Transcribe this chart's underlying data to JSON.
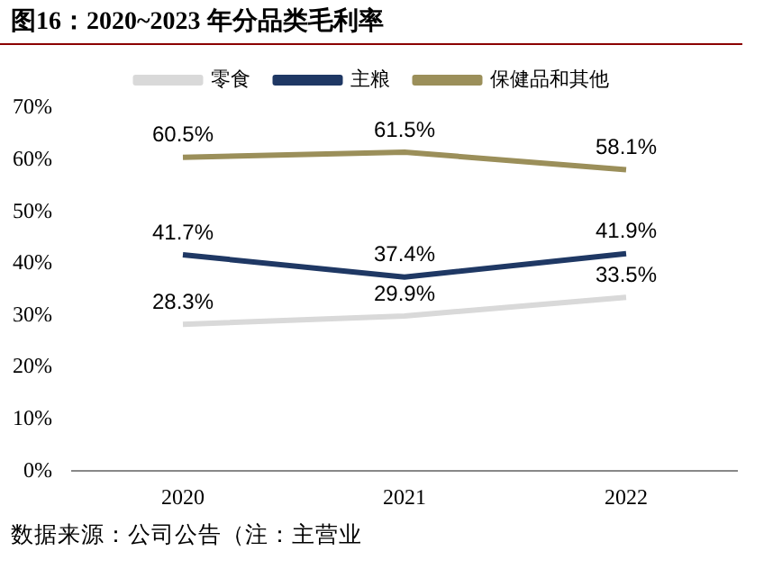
{
  "chart_data": {
    "type": "line",
    "title": "图16：2020~2023 年分品类毛利率",
    "annotations": [
      "数据来源：公司公告（注：主营业"
    ],
    "categories": [
      "2020",
      "2021",
      "2022"
    ],
    "series": [
      {
        "name": "零食",
        "color": "#d9d9d9",
        "values": [
          28.3,
          29.9,
          33.5
        ],
        "value_labels": [
          "28.3%",
          "29.9%",
          "33.5%"
        ]
      },
      {
        "name": "主粮",
        "color": "#1f3864",
        "values": [
          41.7,
          37.4,
          41.9
        ],
        "value_labels": [
          "41.7%",
          "37.4%",
          "41.9%"
        ]
      },
      {
        "name": "保健品和其他",
        "color": "#9b8f5a",
        "values": [
          60.5,
          61.5,
          58.1
        ],
        "value_labels": [
          "60.5%",
          "61.5%",
          "58.1%"
        ]
      }
    ],
    "ylim": [
      0,
      70
    ],
    "yticks": [
      {
        "value": 0,
        "label": "0%"
      },
      {
        "value": 10,
        "label": "10%"
      },
      {
        "value": 20,
        "label": "20%"
      },
      {
        "value": 30,
        "label": "30%"
      },
      {
        "value": 40,
        "label": "40%"
      },
      {
        "value": 50,
        "label": "50%"
      },
      {
        "value": 60,
        "label": "60%"
      },
      {
        "value": 70,
        "label": "70%"
      }
    ],
    "legend": "top",
    "grid": false,
    "marker": "none",
    "line_style": "solid"
  }
}
